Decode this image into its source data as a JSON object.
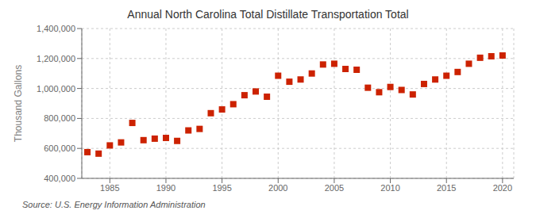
{
  "chart_data": {
    "type": "scatter",
    "title": "Annual North Carolina Total Distillate Transportation Total",
    "ylabel": "Thousand Gallons",
    "source": "Source: U.S. Energy Information Administration",
    "x": [
      1983,
      1984,
      1985,
      1986,
      1987,
      1988,
      1989,
      1990,
      1991,
      1992,
      1993,
      1994,
      1995,
      1996,
      1997,
      1998,
      1999,
      2000,
      2001,
      2002,
      2003,
      2004,
      2005,
      2006,
      2007,
      2008,
      2009,
      2010,
      2011,
      2012,
      2013,
      2014,
      2015,
      2016,
      2017,
      2018,
      2019,
      2020
    ],
    "values": [
      575000,
      565000,
      620000,
      640000,
      770000,
      655000,
      665000,
      670000,
      650000,
      720000,
      730000,
      835000,
      860000,
      895000,
      955000,
      980000,
      945000,
      1085000,
      1045000,
      1060000,
      1100000,
      1160000,
      1165000,
      1130000,
      1125000,
      1005000,
      975000,
      1010000,
      990000,
      960000,
      1030000,
      1060000,
      1085000,
      1110000,
      1165000,
      1205000,
      1215000,
      1220000
    ],
    "color": "#cc2200",
    "marker": "square",
    "grid": true,
    "xlim": [
      1982.5,
      2021
    ],
    "xticks": [
      1985,
      1990,
      1995,
      2000,
      2005,
      2010,
      2015,
      2020
    ],
    "ylim": [
      400000,
      1400000
    ],
    "yticks": [
      {
        "value": 400000,
        "label": "400,000"
      },
      {
        "value": 600000,
        "label": "600,000"
      },
      {
        "value": 800000,
        "label": "800,000"
      },
      {
        "value": 1000000,
        "label": "1,000,000"
      },
      {
        "value": 1200000,
        "label": "1,200,000"
      },
      {
        "value": 1400000,
        "label": "1,400,000"
      }
    ]
  }
}
